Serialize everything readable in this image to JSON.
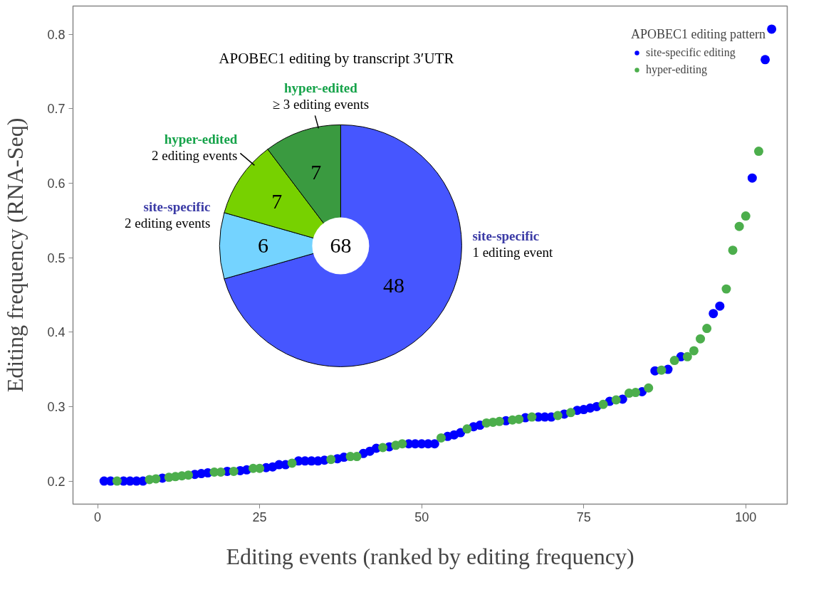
{
  "chart_data": [
    {
      "type": "scatter",
      "xlabel": "Editing events (ranked by editing frequency)",
      "ylabel": "Editing frequency (RNA-Seq)",
      "legend_title": "APOBEC1 editing pattern",
      "legend": "top right",
      "grid": false,
      "marker": "circle",
      "xlim": [
        -3.8,
        106.4
      ],
      "ylim": [
        0.169,
        0.838
      ],
      "xticks": [
        0,
        25,
        50,
        75,
        100
      ],
      "yticks": [
        0.2,
        0.3,
        0.4,
        0.5,
        0.6,
        0.7,
        0.8
      ],
      "series": [
        {
          "name": "site-specific editing",
          "color": "#0000ff",
          "x": [
            1,
            2,
            4,
            5,
            6,
            7,
            10,
            15,
            16,
            17,
            20,
            22,
            23,
            26,
            27,
            28,
            29,
            31,
            32,
            33,
            34,
            35,
            37,
            38,
            41,
            42,
            43,
            45,
            48,
            49,
            50,
            51,
            52,
            54,
            55,
            56,
            58,
            59,
            63,
            66,
            68,
            69,
            70,
            72,
            74,
            75,
            76,
            77,
            79,
            81,
            84,
            86,
            88,
            90,
            95,
            96,
            101,
            103,
            104
          ],
          "values": [
            0.2,
            0.2,
            0.2,
            0.2,
            0.2,
            0.2,
            0.204,
            0.209,
            0.21,
            0.211,
            0.213,
            0.214,
            0.215,
            0.218,
            0.219,
            0.222,
            0.222,
            0.227,
            0.227,
            0.227,
            0.227,
            0.228,
            0.23,
            0.232,
            0.237,
            0.24,
            0.244,
            0.246,
            0.25,
            0.25,
            0.25,
            0.25,
            0.25,
            0.26,
            0.262,
            0.265,
            0.273,
            0.275,
            0.281,
            0.285,
            0.286,
            0.286,
            0.286,
            0.29,
            0.295,
            0.296,
            0.298,
            0.3,
            0.307,
            0.31,
            0.32,
            0.348,
            0.35,
            0.367,
            0.425,
            0.435,
            0.607,
            0.766,
            0.807
          ]
        },
        {
          "name": "hyper-editing",
          "color": "#4cae4c",
          "x": [
            3,
            8,
            9,
            11,
            12,
            13,
            14,
            18,
            19,
            21,
            24,
            25,
            30,
            36,
            39,
            40,
            44,
            46,
            47,
            53,
            57,
            60,
            61,
            62,
            64,
            65,
            67,
            71,
            73,
            78,
            80,
            82,
            83,
            85,
            87,
            89,
            91,
            92,
            93,
            94,
            97,
            98,
            99,
            100,
            102
          ],
          "values": [
            0.2,
            0.202,
            0.203,
            0.205,
            0.206,
            0.207,
            0.208,
            0.212,
            0.212,
            0.213,
            0.217,
            0.217,
            0.224,
            0.229,
            0.233,
            0.233,
            0.245,
            0.248,
            0.25,
            0.258,
            0.27,
            0.278,
            0.279,
            0.28,
            0.282,
            0.283,
            0.286,
            0.288,
            0.292,
            0.303,
            0.309,
            0.318,
            0.319,
            0.325,
            0.349,
            0.362,
            0.367,
            0.375,
            0.391,
            0.405,
            0.458,
            0.51,
            0.542,
            0.556,
            0.643
          ]
        }
      ]
    },
    {
      "type": "donut",
      "title": "APOBEC1 editing by transcript 3′UTR",
      "data_labels": true,
      "categories": [
        "site-specific\n1 editing event",
        "site-specific\n2 editing events",
        "hyper-edited\n2 editing events",
        "hyper-edited\n≥ 3 editing events"
      ],
      "values": [
        48,
        6,
        7,
        7
      ],
      "colors": [
        "#4656ff",
        "#74d3ff",
        "#77d100",
        "#3a9a40"
      ],
      "annotations": [
        "68"
      ]
    }
  ]
}
